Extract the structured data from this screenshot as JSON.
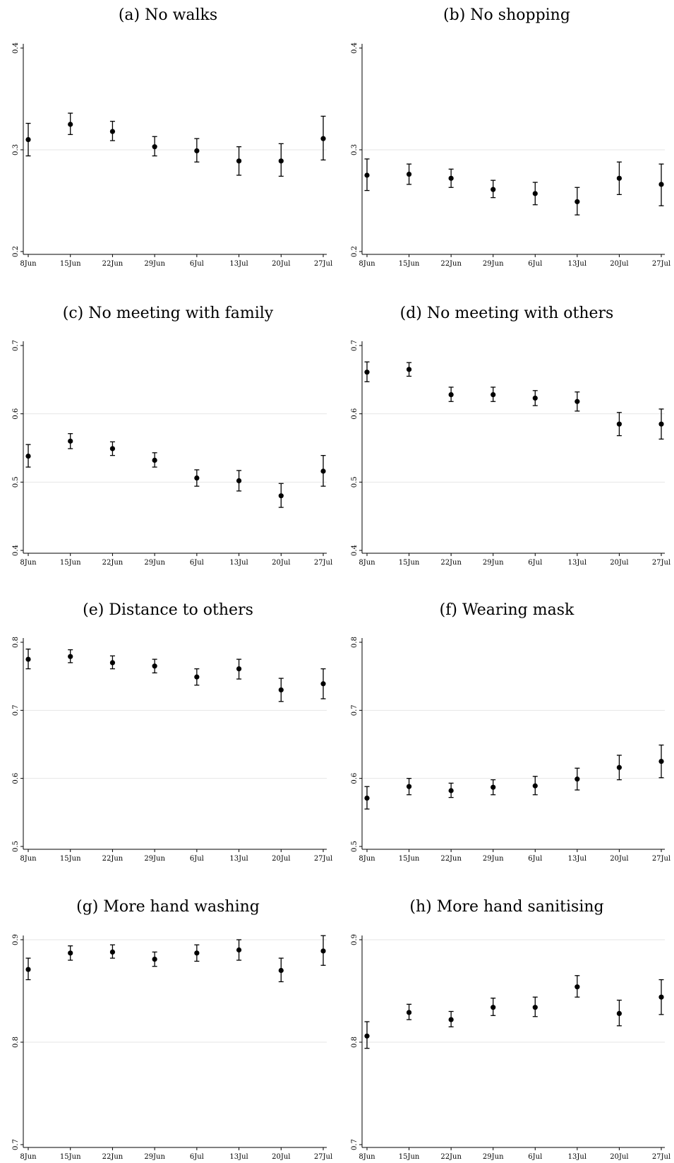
{
  "chart_data": [
    {
      "type": "scatter",
      "title": "(a) No walks",
      "categories": [
        "8Jun",
        "15Jun",
        "22Jun",
        "29Jun",
        "6Jul",
        "13Jul",
        "20Jul",
        "27Jul"
      ],
      "series": [
        {
          "values": [
            0.31,
            0.325,
            0.318,
            0.303,
            0.299,
            0.289,
            0.289,
            0.311
          ],
          "lower": [
            0.294,
            0.315,
            0.309,
            0.294,
            0.288,
            0.275,
            0.274,
            0.29
          ],
          "upper": [
            0.326,
            0.336,
            0.328,
            0.313,
            0.311,
            0.303,
            0.306,
            0.333
          ]
        }
      ],
      "ylim": [
        0.2,
        0.4
      ],
      "yticks": [
        0.2,
        0.3,
        0.4
      ],
      "ytick_labels": [
        "0.2",
        "0.3",
        "0.4"
      ],
      "grid_y": [
        0.3
      ]
    },
    {
      "type": "scatter",
      "title": "(b) No shopping",
      "categories": [
        "8Jun",
        "15Jun",
        "22Jun",
        "29Jun",
        "6Jul",
        "13Jul",
        "20Jul",
        "27Jul"
      ],
      "series": [
        {
          "values": [
            0.275,
            0.276,
            0.272,
            0.261,
            0.257,
            0.249,
            0.272,
            0.266
          ],
          "lower": [
            0.26,
            0.266,
            0.263,
            0.253,
            0.246,
            0.236,
            0.256,
            0.245
          ],
          "upper": [
            0.291,
            0.286,
            0.281,
            0.27,
            0.268,
            0.263,
            0.288,
            0.286
          ]
        }
      ],
      "ylim": [
        0.2,
        0.4
      ],
      "yticks": [
        0.2,
        0.3,
        0.4
      ],
      "ytick_labels": [
        "0.2",
        "0.3",
        "0.4"
      ],
      "grid_y": [
        0.3
      ]
    },
    {
      "type": "scatter",
      "title": "(c) No meeting with family",
      "categories": [
        "8Jun",
        "15Jun",
        "22Jun",
        "29Jun",
        "6Jul",
        "13Jul",
        "20Jul",
        "27Jul"
      ],
      "series": [
        {
          "values": [
            0.538,
            0.56,
            0.549,
            0.532,
            0.506,
            0.502,
            0.48,
            0.516
          ],
          "lower": [
            0.522,
            0.549,
            0.539,
            0.522,
            0.494,
            0.487,
            0.463,
            0.494
          ],
          "upper": [
            0.555,
            0.571,
            0.559,
            0.543,
            0.518,
            0.517,
            0.498,
            0.539
          ]
        }
      ],
      "ylim": [
        0.4,
        0.7
      ],
      "yticks": [
        0.4,
        0.5,
        0.6,
        0.7
      ],
      "ytick_labels": [
        "0.4",
        "0.5",
        "0.6",
        "0.7"
      ],
      "grid_y": [
        0.5,
        0.6
      ]
    },
    {
      "type": "scatter",
      "title": "(d) No meeting with others",
      "categories": [
        "8Jun",
        "15Jun",
        "22Jun",
        "29Jun",
        "6Jul",
        "13Jul",
        "20Jul",
        "27Jul"
      ],
      "series": [
        {
          "values": [
            0.661,
            0.665,
            0.628,
            0.628,
            0.623,
            0.618,
            0.585,
            0.585
          ],
          "lower": [
            0.647,
            0.655,
            0.618,
            0.618,
            0.612,
            0.604,
            0.568,
            0.563
          ],
          "upper": [
            0.676,
            0.675,
            0.639,
            0.639,
            0.634,
            0.632,
            0.602,
            0.607
          ]
        }
      ],
      "ylim": [
        0.4,
        0.7
      ],
      "yticks": [
        0.4,
        0.5,
        0.6,
        0.7
      ],
      "ytick_labels": [
        "0.4",
        "0.5",
        "0.6",
        "0.7"
      ],
      "grid_y": [
        0.5,
        0.6
      ]
    },
    {
      "type": "scatter",
      "title": "(e) Distance to others",
      "categories": [
        "8Jun",
        "15Jun",
        "22Jun",
        "29Jun",
        "6Jul",
        "13Jul",
        "20Jul",
        "27Jul"
      ],
      "series": [
        {
          "values": [
            0.775,
            0.779,
            0.77,
            0.765,
            0.749,
            0.761,
            0.73,
            0.739
          ],
          "lower": [
            0.761,
            0.77,
            0.761,
            0.755,
            0.737,
            0.746,
            0.713,
            0.717
          ],
          "upper": [
            0.79,
            0.789,
            0.78,
            0.775,
            0.761,
            0.775,
            0.747,
            0.761
          ]
        }
      ],
      "ylim": [
        0.5,
        0.8
      ],
      "yticks": [
        0.5,
        0.6,
        0.7,
        0.8
      ],
      "ytick_labels": [
        "0.5",
        "0.6",
        "0.7",
        "0.8"
      ],
      "grid_y": [
        0.6,
        0.7
      ]
    },
    {
      "type": "scatter",
      "title": "(f) Wearing mask",
      "categories": [
        "8Jun",
        "15Jun",
        "22Jun",
        "29Jun",
        "6Jul",
        "13Jul",
        "20Jul",
        "27Jul"
      ],
      "series": [
        {
          "values": [
            0.571,
            0.588,
            0.582,
            0.587,
            0.589,
            0.599,
            0.616,
            0.625
          ],
          "lower": [
            0.555,
            0.576,
            0.572,
            0.576,
            0.576,
            0.583,
            0.598,
            0.601
          ],
          "upper": [
            0.588,
            0.6,
            0.593,
            0.598,
            0.603,
            0.615,
            0.634,
            0.649
          ]
        }
      ],
      "ylim": [
        0.5,
        0.8
      ],
      "yticks": [
        0.5,
        0.6,
        0.7,
        0.8
      ],
      "ytick_labels": [
        "0.5",
        "0.6",
        "0.7",
        "0.8"
      ],
      "grid_y": [
        0.6,
        0.7
      ]
    },
    {
      "type": "scatter",
      "title": "(g) More hand washing",
      "categories": [
        "8Jun",
        "15Jun",
        "22Jun",
        "29Jun",
        "6Jul",
        "13Jul",
        "20Jul",
        "27Jul"
      ],
      "series": [
        {
          "values": [
            0.871,
            0.887,
            0.888,
            0.881,
            0.887,
            0.89,
            0.87,
            0.889
          ],
          "lower": [
            0.861,
            0.88,
            0.882,
            0.874,
            0.879,
            0.88,
            0.859,
            0.875
          ],
          "upper": [
            0.882,
            0.894,
            0.895,
            0.888,
            0.895,
            0.9,
            0.882,
            0.904
          ]
        }
      ],
      "ylim": [
        0.7,
        0.9
      ],
      "yticks": [
        0.7,
        0.8,
        0.9
      ],
      "ytick_labels": [
        "0.7",
        "0.8",
        "0.9"
      ],
      "grid_y": [
        0.8,
        0.9
      ]
    },
    {
      "type": "scatter",
      "title": "(h) More hand sanitising",
      "categories": [
        "8Jun",
        "15Jun",
        "22Jun",
        "29Jun",
        "6Jul",
        "13Jul",
        "20Jul",
        "27Jul"
      ],
      "series": [
        {
          "values": [
            0.806,
            0.829,
            0.822,
            0.834,
            0.834,
            0.854,
            0.828,
            0.844
          ],
          "lower": [
            0.794,
            0.822,
            0.815,
            0.826,
            0.825,
            0.844,
            0.816,
            0.827
          ],
          "upper": [
            0.82,
            0.837,
            0.83,
            0.843,
            0.844,
            0.865,
            0.841,
            0.861
          ]
        }
      ],
      "ylim": [
        0.7,
        0.9
      ],
      "yticks": [
        0.7,
        0.8,
        0.9
      ],
      "ytick_labels": [
        "0.7",
        "0.8",
        "0.9"
      ],
      "grid_y": [
        0.8,
        0.9
      ]
    }
  ]
}
